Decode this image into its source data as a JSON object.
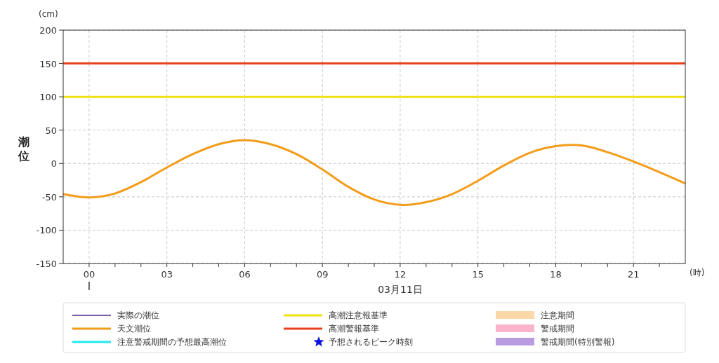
{
  "chart_data": {
    "type": "line",
    "ylabel": "潮位",
    "xlabel": "(時)",
    "annotations": [
      "(cm)",
      "03月11日"
    ],
    "x": [
      -1,
      0,
      1,
      2,
      3,
      4,
      5,
      6,
      7,
      8,
      9,
      10,
      11,
      12,
      13,
      14,
      15,
      16,
      17,
      18,
      19,
      20,
      21,
      22,
      23
    ],
    "series": [
      {
        "name": "実際の潮位",
        "color": "#7b5ea7",
        "values": [
          null,
          null,
          null,
          null,
          null,
          null,
          null,
          null,
          null,
          null,
          null,
          null,
          null,
          null,
          null,
          null,
          null,
          null,
          null,
          null,
          null,
          null,
          null,
          null,
          null
        ]
      },
      {
        "name": "天文潮位",
        "color": "#f39c1a",
        "values": [
          -46,
          -51,
          -45,
          -28,
          -6,
          14,
          29,
          35,
          29,
          14,
          -9,
          -35,
          -54,
          -62,
          -58,
          -46,
          -26,
          -3,
          16,
          26,
          27,
          17,
          3,
          -13,
          -30
        ]
      },
      {
        "name": "注意警戒期間の予想最高潮位",
        "color": "#22e8f0",
        "values": [
          null,
          null,
          null,
          null,
          null,
          null,
          null,
          null,
          null,
          null,
          null,
          null,
          null,
          null,
          null,
          null,
          null,
          null,
          null,
          null,
          null,
          null,
          null,
          null,
          null
        ]
      },
      {
        "name": "予想されるピーク時刻",
        "type": "scatter",
        "marker": "star",
        "color": "#0a10e0",
        "values": [
          null,
          null,
          null,
          null,
          null,
          null,
          null,
          null,
          null,
          null,
          null,
          null,
          null,
          null,
          null,
          null,
          null,
          null,
          null,
          null,
          null,
          null,
          null,
          null,
          null
        ]
      },
      {
        "name": "注意期間",
        "type": "area",
        "color": "#fcd8a8",
        "values": [
          null,
          null,
          null,
          null,
          null,
          null,
          null,
          null,
          null,
          null,
          null,
          null,
          null,
          null,
          null,
          null,
          null,
          null,
          null,
          null,
          null,
          null,
          null,
          null,
          null
        ]
      },
      {
        "name": "警戒期間",
        "type": "area",
        "color": "#f9b4cc",
        "values": [
          null,
          null,
          null,
          null,
          null,
          null,
          null,
          null,
          null,
          null,
          null,
          null,
          null,
          null,
          null,
          null,
          null,
          null,
          null,
          null,
          null,
          null,
          null,
          null,
          null
        ]
      },
      {
        "name": "警戒期間(特別警報)",
        "type": "area",
        "color": "#b89be0",
        "values": [
          null,
          null,
          null,
          null,
          null,
          null,
          null,
          null,
          null,
          null,
          null,
          null,
          null,
          null,
          null,
          null,
          null,
          null,
          null,
          null,
          null,
          null,
          null,
          null,
          null
        ]
      }
    ],
    "ref_lines": [
      {
        "axis": "y",
        "value": 100,
        "label": "高潮注意報基準",
        "color": "#f0e010"
      },
      {
        "axis": "y",
        "value": 150,
        "label": "高潮警報基準",
        "color": "#e8401c"
      }
    ],
    "xlim": [
      -1,
      23
    ],
    "xticks": [
      {
        "value": 0,
        "label": "00"
      },
      {
        "value": 1,
        "label": null
      },
      {
        "value": 2,
        "label": null
      },
      {
        "value": 3,
        "label": "03"
      },
      {
        "value": 4,
        "label": null
      },
      {
        "value": 5,
        "label": null
      },
      {
        "value": 6,
        "label": "06"
      },
      {
        "value": 7,
        "label": null
      },
      {
        "value": 8,
        "label": null
      },
      {
        "value": 9,
        "label": "09"
      },
      {
        "value": 10,
        "label": null
      },
      {
        "value": 11,
        "label": null
      },
      {
        "value": 12,
        "label": "12"
      },
      {
        "value": 13,
        "label": null
      },
      {
        "value": 14,
        "label": null
      },
      {
        "value": 15,
        "label": "15"
      },
      {
        "value": 16,
        "label": null
      },
      {
        "value": 17,
        "label": null
      },
      {
        "value": 18,
        "label": "18"
      },
      {
        "value": 19,
        "label": null
      },
      {
        "value": 20,
        "label": null
      },
      {
        "value": 21,
        "label": "21"
      },
      {
        "value": 22,
        "label": null
      }
    ],
    "ylim": [
      -150,
      200
    ],
    "yticks": [
      -150,
      -100,
      -50,
      0,
      50,
      100,
      150,
      200
    ],
    "grid": true,
    "legend": "bottom"
  }
}
